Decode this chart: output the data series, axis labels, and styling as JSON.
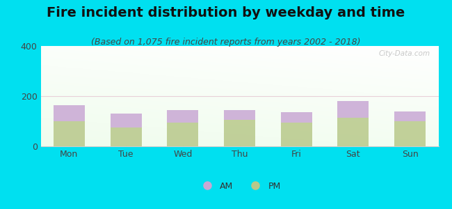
{
  "title": "Fire incident distribution by weekday and time",
  "subtitle": "(Based on 1,075 fire incident reports from years 2002 - 2018)",
  "categories": [
    "Mon",
    "Tue",
    "Wed",
    "Thu",
    "Fri",
    "Sat",
    "Sun"
  ],
  "pm_values": [
    100,
    75,
    95,
    105,
    95,
    115,
    100
  ],
  "am_values": [
    65,
    55,
    50,
    40,
    40,
    65,
    40
  ],
  "am_color": "#c9a8d4",
  "pm_color": "#b8c88a",
  "background_outer": "#00e0f0",
  "ylim": [
    0,
    400
  ],
  "yticks": [
    0,
    200,
    400
  ],
  "bar_width": 0.55,
  "title_fontsize": 14,
  "subtitle_fontsize": 9,
  "tick_fontsize": 9,
  "legend_fontsize": 9,
  "watermark_text": "City-Data.com",
  "grid_color": "#e8d0d8",
  "grid_linewidth": 0.8
}
